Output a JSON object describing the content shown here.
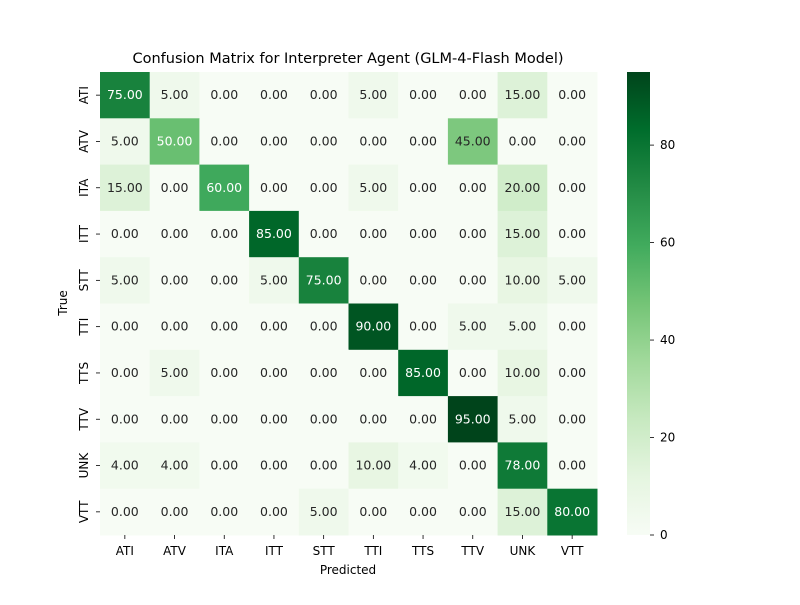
{
  "chart_data": {
    "type": "heatmap",
    "title": "Confusion Matrix for Interpreter Agent (GLM-4-Flash Model)",
    "xlabel": "Predicted",
    "ylabel": "True",
    "x_categories": [
      "ATI",
      "ATV",
      "ITA",
      "ITT",
      "STT",
      "TTI",
      "TTS",
      "TTV",
      "UNK",
      "VTT"
    ],
    "y_categories": [
      "ATI",
      "ATV",
      "ITA",
      "ITT",
      "STT",
      "TTI",
      "TTS",
      "TTV",
      "UNK",
      "VTT"
    ],
    "values": [
      [
        75,
        5,
        0,
        0,
        0,
        5,
        0,
        0,
        15,
        0
      ],
      [
        5,
        50,
        0,
        0,
        0,
        0,
        0,
        45,
        0,
        0
      ],
      [
        15,
        0,
        60,
        0,
        0,
        5,
        0,
        0,
        20,
        0
      ],
      [
        0,
        0,
        0,
        85,
        0,
        0,
        0,
        0,
        15,
        0
      ],
      [
        5,
        0,
        0,
        5,
        75,
        0,
        0,
        0,
        10,
        5
      ],
      [
        0,
        0,
        0,
        0,
        0,
        90,
        0,
        5,
        5,
        0
      ],
      [
        0,
        5,
        0,
        0,
        0,
        0,
        85,
        0,
        10,
        0
      ],
      [
        0,
        0,
        0,
        0,
        0,
        0,
        0,
        95,
        5,
        0
      ],
      [
        4,
        4,
        0,
        0,
        0,
        10,
        4,
        0,
        78,
        0
      ],
      [
        0,
        0,
        0,
        0,
        5,
        0,
        0,
        0,
        15,
        80
      ]
    ],
    "value_format_decimals": 2,
    "colormap": "Greens",
    "colormap_stops": [
      "#f7fcf5",
      "#e5f5e0",
      "#c7e9c0",
      "#a1d99b",
      "#74c476",
      "#41ab5d",
      "#238b45",
      "#006d2c",
      "#00441b"
    ],
    "colorbar_range": [
      0,
      95
    ],
    "colorbar_ticks": [
      0,
      20,
      40,
      60,
      80
    ],
    "annotation_light_color": "#ffffff",
    "annotation_dark_color": "#262626",
    "grid": false,
    "legend": "colorbar-right"
  }
}
